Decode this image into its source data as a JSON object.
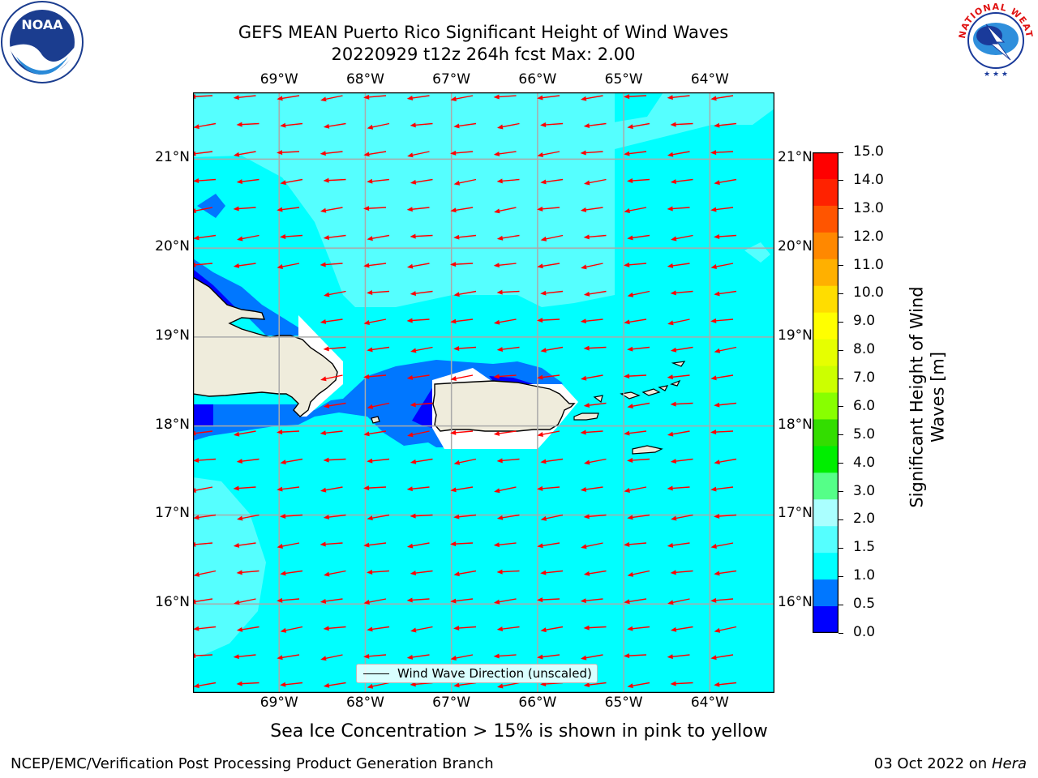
{
  "title": {
    "line1": "GEFS MEAN Puerto Rico Significant Height of Wind Waves",
    "line2": "20220929 t12z 264h fcst   Max: 2.00"
  },
  "map": {
    "lon_labels_top": [
      "69°W",
      "68°W",
      "67°W",
      "66°W",
      "65°W",
      "64°W"
    ],
    "lon_labels_bottom": [
      "69°W",
      "68°W",
      "67°W",
      "66°W",
      "65°W",
      "64°W"
    ],
    "lat_labels_left": [
      "21°N",
      "20°N",
      "19°N",
      "18°N",
      "17°N",
      "16°N"
    ],
    "lat_labels_right": [
      "21°N",
      "20°N",
      "19°N",
      "18°N",
      "17°N",
      "16°N"
    ],
    "lon_range": [
      -70.0,
      -63.25
    ],
    "lat_range": [
      15.0,
      21.75
    ],
    "arrow_color": "#ff0000",
    "legend_label": "Wind Wave Direction (unscaled)"
  },
  "colorbar": {
    "label_line1": "Significant Height of Wind",
    "label_line2": "Waves [m]",
    "ticks": [
      "15.0",
      "14.0",
      "13.0",
      "12.0",
      "11.0",
      "10.0",
      "9.0",
      "8.0",
      "7.0",
      "6.0",
      "5.0",
      "4.0",
      "3.0",
      "2.0",
      "1.5",
      "1.0",
      "0.5",
      "0.0"
    ],
    "colors": [
      "#ff0000",
      "#ff2200",
      "#ff5500",
      "#ff8800",
      "#ffb000",
      "#ffdd00",
      "#ffff00",
      "#e6ff00",
      "#ccff00",
      "#88ff00",
      "#33dd00",
      "#00ee00",
      "#55ff88",
      "#aaffff",
      "#55ffff",
      "#00ffff",
      "#0077ff",
      "#0000ff"
    ]
  },
  "colors": {
    "sea_main": "#00ffff",
    "sea_light": "#55ffff",
    "sea_mid": "#0077ff",
    "sea_dark": "#0000ff",
    "land": "#efecdc"
  },
  "logos": {
    "noaa_text": "NOAA",
    "nws_text": "NATIONAL WEATHER SERVICE"
  },
  "ice_note": "Sea Ice Concentration > 15% is shown in pink to yellow",
  "footer": {
    "left": "NCEP/EMC/Verification Post Processing Product Generation Branch",
    "right_prefix": "03 Oct 2022 on ",
    "right_machine": "Hera"
  }
}
